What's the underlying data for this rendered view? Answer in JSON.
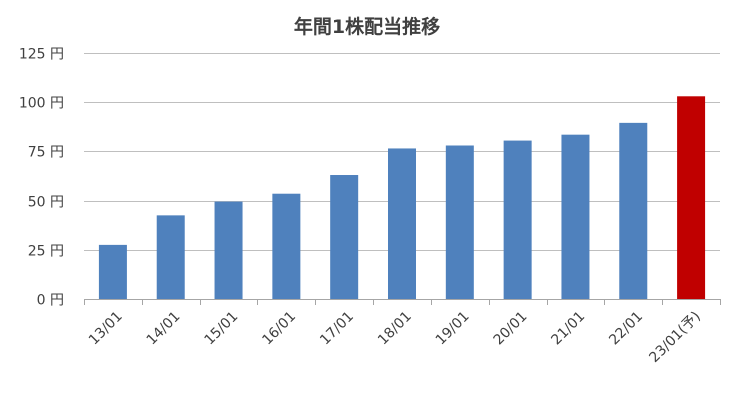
{
  "chart_data": {
    "type": "bar",
    "title": "年間1株配当推移",
    "categories": [
      "13/01",
      "14/01",
      "15/01",
      "16/01",
      "17/01",
      "18/01",
      "19/01",
      "20/01",
      "21/01",
      "22/01",
      "23/01(予)"
    ],
    "values": [
      27.5,
      42.5,
      49.5,
      53.5,
      63,
      76.5,
      78,
      80.5,
      83.5,
      89.5,
      103
    ],
    "y_ticks": [
      "0 円",
      "25 円",
      "50 円",
      "75 円",
      "100 円",
      "125 円"
    ],
    "ylim": [
      0,
      125
    ],
    "grid": true,
    "colors": {
      "actual": "#4F81BD",
      "forecast": "#C00000",
      "grid": "#BFBFBF",
      "axis": "#A6A6A6"
    },
    "highlight_index": 10
  }
}
